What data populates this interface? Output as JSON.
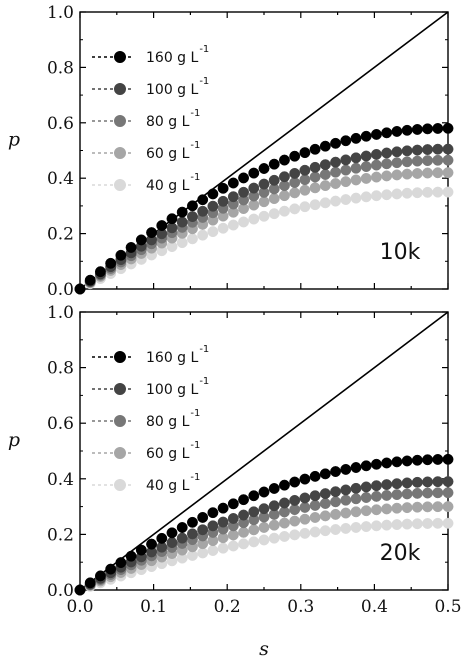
{
  "chart_data": [
    {
      "type": "scatter",
      "panel_label": "10k",
      "xlabel": "",
      "ylabel": "p",
      "xlim": [
        0,
        0.5
      ],
      "ylim": [
        0,
        1.0
      ],
      "yticks": [
        "0.0",
        "0.2",
        "0.4",
        "0.6",
        "0.8",
        "1.0"
      ],
      "reference_line": {
        "from": [
          0,
          0
        ],
        "to": [
          0.5,
          1.0
        ]
      },
      "legend_placement": "top-left",
      "series": [
        {
          "name": "160 g L",
          "sup": "-1",
          "color": "#000000",
          "y_end": 0.58
        },
        {
          "name": "100 g L",
          "sup": "-1",
          "color": "#444444",
          "y_end": 0.505
        },
        {
          "name": "80 g L",
          "sup": "-1",
          "color": "#777777",
          "y_end": 0.465
        },
        {
          "name": "60 g L",
          "sup": "-1",
          "color": "#a6a6a6",
          "y_end": 0.42
        },
        {
          "name": "40 g L",
          "sup": "-1",
          "color": "#d9d9d9",
          "y_end": 0.35
        }
      ]
    },
    {
      "type": "scatter",
      "panel_label": "20k",
      "xlabel": "s",
      "ylabel": "p",
      "xlim": [
        0,
        0.5
      ],
      "ylim": [
        0,
        1.0
      ],
      "xticks": [
        "0.0",
        "0.1",
        "0.2",
        "0.3",
        "0.4",
        "0.5"
      ],
      "yticks": [
        "0.0",
        "0.2",
        "0.4",
        "0.6",
        "0.8",
        "1.0"
      ],
      "reference_line": {
        "from": [
          0,
          0
        ],
        "to": [
          0.5,
          1.0
        ]
      },
      "legend_placement": "top-left",
      "series": [
        {
          "name": "160 g L",
          "sup": "-1",
          "color": "#000000",
          "y_end": 0.47
        },
        {
          "name": "100 g L",
          "sup": "-1",
          "color": "#444444",
          "y_end": 0.39
        },
        {
          "name": "80 g L",
          "sup": "-1",
          "color": "#777777",
          "y_end": 0.35
        },
        {
          "name": "60 g L",
          "sup": "-1",
          "color": "#a6a6a6",
          "y_end": 0.3
        },
        {
          "name": "40 g L",
          "sup": "-1",
          "color": "#d9d9d9",
          "y_end": 0.24
        }
      ]
    }
  ]
}
